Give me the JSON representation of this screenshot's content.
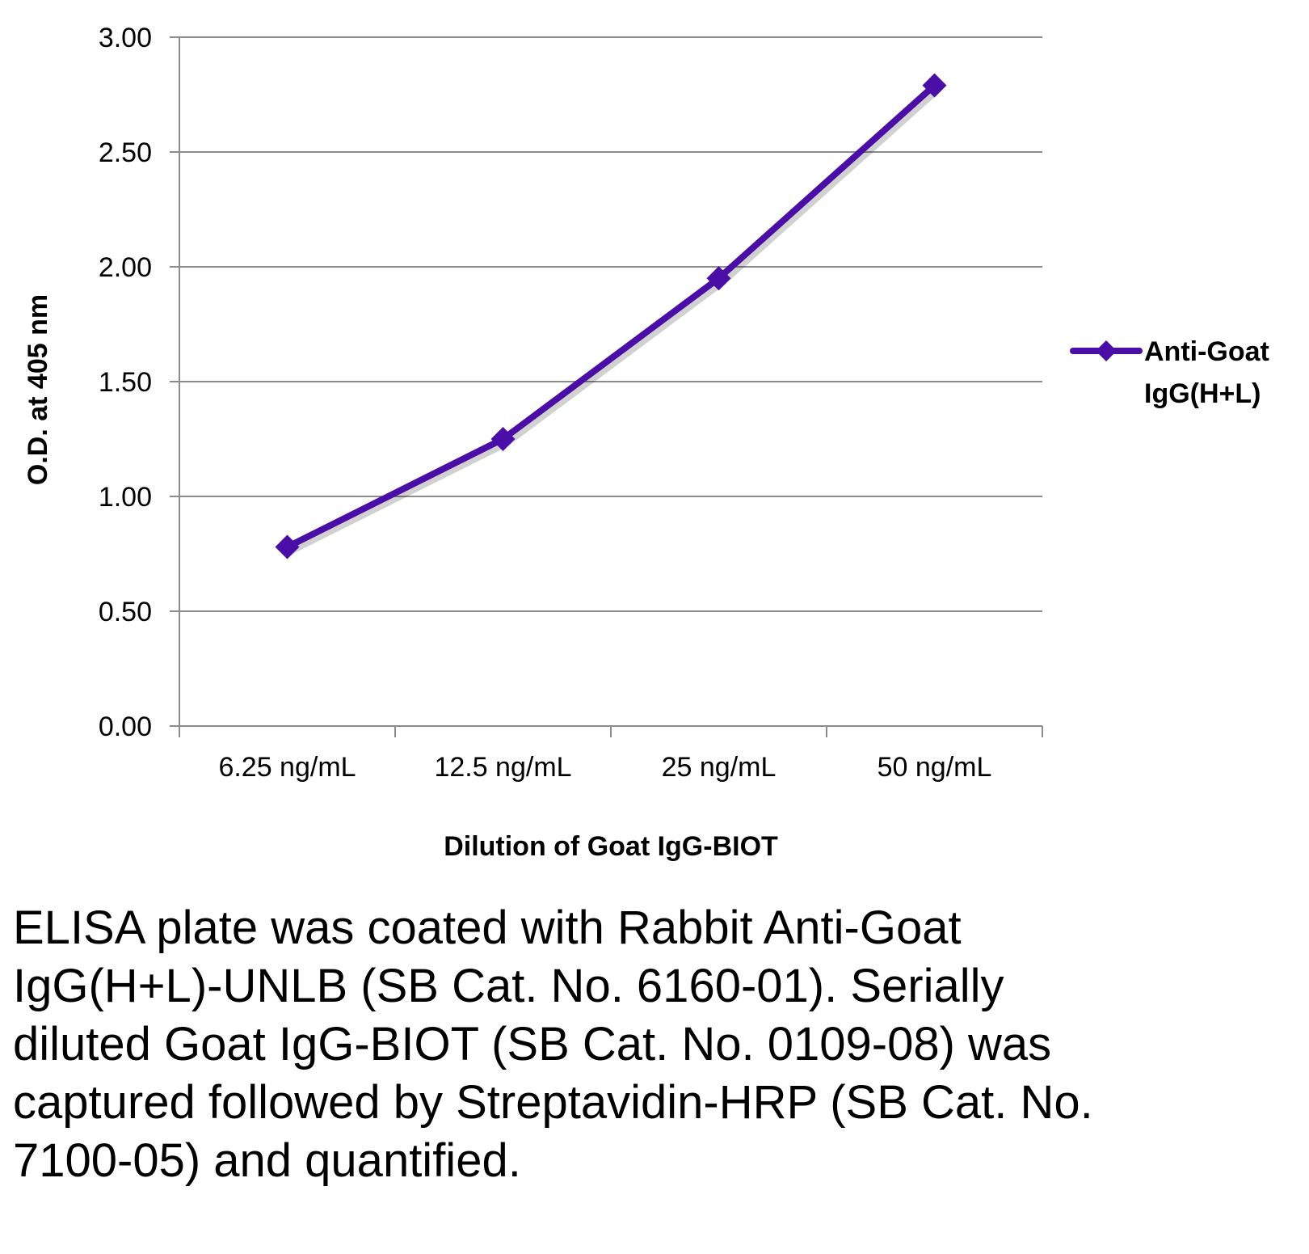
{
  "chart_data": {
    "type": "line",
    "categories": [
      "6.25 ng/mL",
      "12.5 ng/mL",
      "25 ng/mL",
      "50 ng/mL"
    ],
    "series": [
      {
        "name": "Anti-Goat IgG(H+L)",
        "values": [
          0.78,
          1.25,
          1.95,
          2.79
        ],
        "color": "#4a0ea6",
        "marker": "diamond"
      }
    ],
    "title": "",
    "xlabel": "Dilution of Goat IgG-BIOT",
    "ylabel": "O.D. at 405 nm",
    "ylim": [
      0,
      3
    ],
    "yticks": [
      "0.00",
      "0.50",
      "1.00",
      "1.50",
      "2.00",
      "2.50",
      "3.00"
    ],
    "grid": "horizontal",
    "legend_position": "right"
  },
  "caption": "ELISA plate was coated with Rabbit Anti-Goat IgG(H+L)-UNLB (SB Cat. No. 6160-01). Serially diluted Goat IgG-BIOT (SB Cat. No. 0109-08) was captured followed by Streptavidin-HRP (SB Cat. No. 7100-05) and quantified."
}
